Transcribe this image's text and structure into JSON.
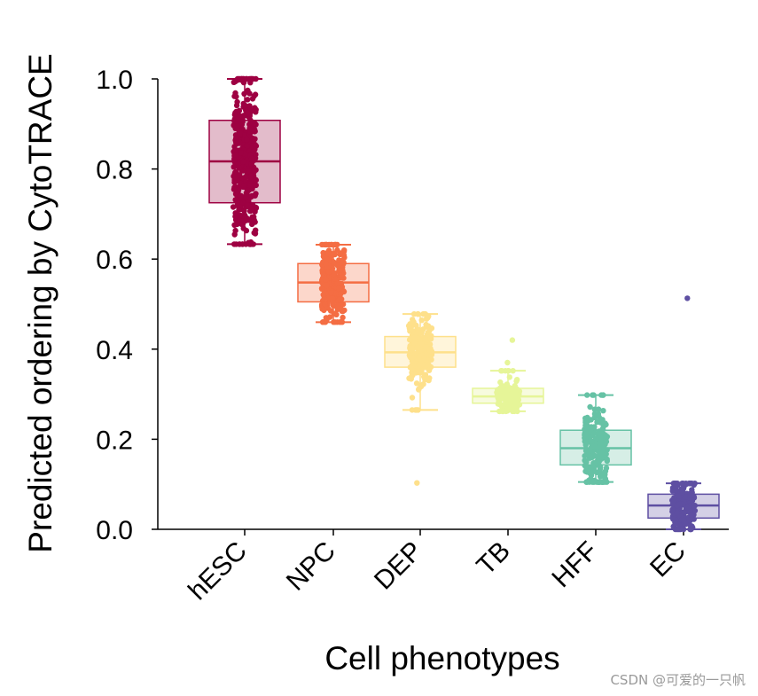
{
  "chart_data": {
    "type": "box",
    "title": "",
    "xlabel": "Cell phenotypes",
    "ylabel": "Predicted ordering by CytoTRACE",
    "ylim": [
      0.0,
      1.0
    ],
    "yticks": [
      "0.0",
      "0.2",
      "0.4",
      "0.6",
      "0.8",
      "1.0"
    ],
    "grid": false,
    "categories": [
      "hESC",
      "NPC",
      "DEP",
      "TB",
      "HFF",
      "EC"
    ],
    "series": [
      {
        "name": "hESC",
        "color": "#9E0142",
        "fill": "#E3BCCB",
        "n": 420,
        "whisker_low": 0.633,
        "q1": 0.725,
        "median": 0.817,
        "q3": 0.908,
        "whisker_high": 1.0,
        "outliers": []
      },
      {
        "name": "NPC",
        "color": "#F46D43",
        "fill": "#FCD7CB",
        "n": 240,
        "whisker_low": 0.46,
        "q1": 0.505,
        "median": 0.548,
        "q3": 0.59,
        "whisker_high": 0.632,
        "outliers": []
      },
      {
        "name": "DEP",
        "color": "#FEE08B",
        "fill": "#FFF5DA",
        "n": 200,
        "whisker_low": 0.265,
        "q1": 0.36,
        "median": 0.393,
        "q3": 0.428,
        "whisker_high": 0.478,
        "outliers": [
          0.103,
          0.31
        ]
      },
      {
        "name": "TB",
        "color": "#E6F598",
        "fill": "#F7FBDE",
        "n": 120,
        "whisker_low": 0.262,
        "q1": 0.28,
        "median": 0.295,
        "q3": 0.313,
        "whisker_high": 0.352,
        "outliers": [
          0.37,
          0.42
        ]
      },
      {
        "name": "HFF",
        "color": "#66C2A5",
        "fill": "#D6EEE6",
        "n": 200,
        "whisker_low": 0.105,
        "q1": 0.143,
        "median": 0.18,
        "q3": 0.22,
        "whisker_high": 0.298,
        "outliers": []
      },
      {
        "name": "EC",
        "color": "#5E4FA2",
        "fill": "#D4D0E6",
        "n": 180,
        "whisker_low": 0.0,
        "q1": 0.025,
        "median": 0.053,
        "q3": 0.078,
        "whisker_high": 0.102,
        "outliers": [
          0.513
        ]
      }
    ]
  },
  "watermark": "CSDN @可爱的一只帆"
}
